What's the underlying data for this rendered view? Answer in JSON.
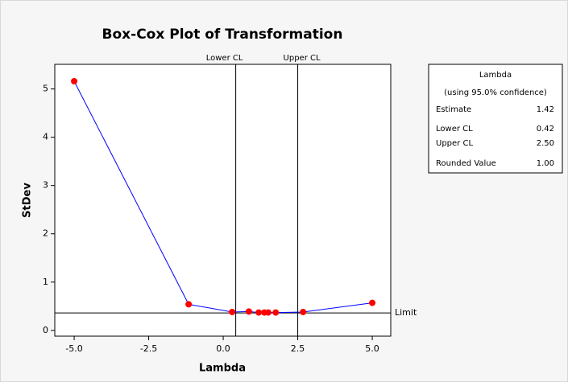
{
  "chart_data": {
    "type": "line",
    "title": "Box-Cox Plot of Transformation",
    "x_label": "Lambda",
    "y_label": "StDev",
    "x": [
      -5.0,
      -1.16,
      0.3,
      0.86,
      1.19,
      1.38,
      1.51,
      1.76,
      2.68,
      5.0
    ],
    "series": [
      {
        "name": "StDev",
        "color": "#0000ff",
        "marker_color": "#ff0000",
        "values": [
          5.16,
          0.54,
          0.38,
          0.39,
          0.37,
          0.37,
          0.37,
          0.37,
          0.38,
          0.57
        ]
      }
    ],
    "xlim": [
      -5.65,
      5.62
    ],
    "ylim": [
      -0.12,
      5.51
    ],
    "xticks": [
      {
        "value": -5,
        "label": "-5.0"
      },
      {
        "value": -2.5,
        "label": "-2.5"
      },
      {
        "value": 0,
        "label": "0.0"
      },
      {
        "value": 2.5,
        "label": "2.5"
      },
      {
        "value": 5,
        "label": "5.0"
      }
    ],
    "yticks": [
      0,
      1,
      2,
      3,
      4,
      5
    ],
    "cl_lines": [
      {
        "label": "Lower CL",
        "value": 0.42
      },
      {
        "label": "Upper CL",
        "value": 2.5
      }
    ],
    "limit": {
      "label": "Limit",
      "value": 0.36
    },
    "lambda_box": {
      "title": "Lambda",
      "subtitle": "(using 95.0% confidence)",
      "rows": [
        [
          "Estimate",
          "1.42"
        ],
        [
          "Lower CL",
          "0.42"
        ],
        [
          "Upper CL",
          "2.50"
        ],
        [
          "Rounded Value",
          "1.00"
        ]
      ]
    }
  }
}
